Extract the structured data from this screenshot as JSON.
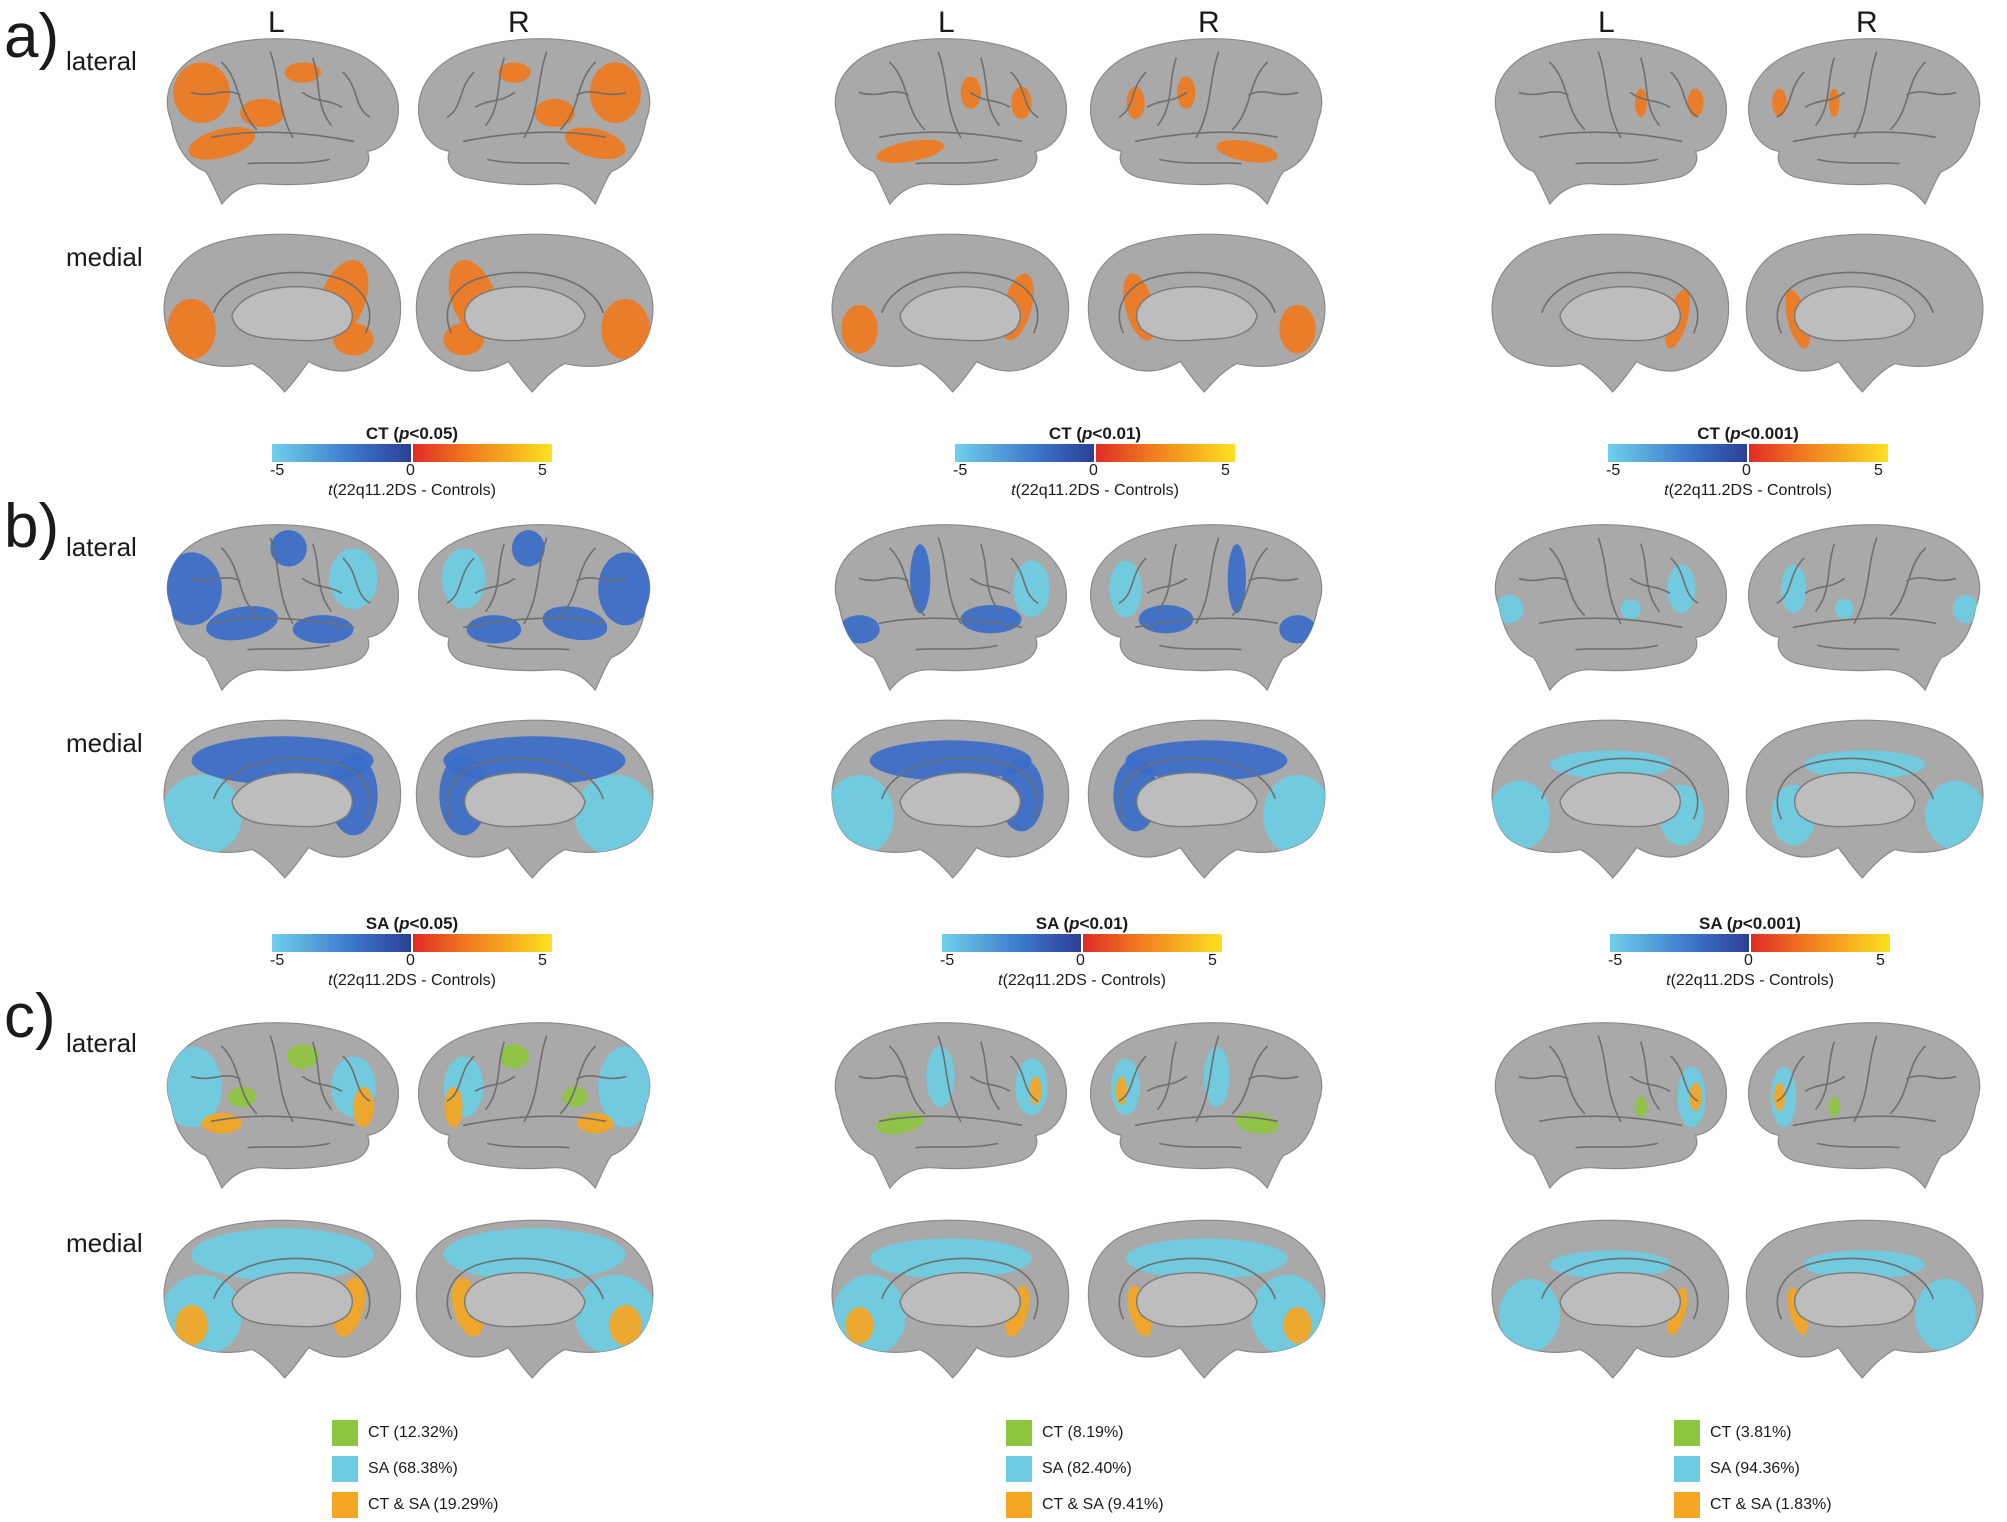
{
  "panels": {
    "a": "a)",
    "b": "b)",
    "c": "c)"
  },
  "row_labels": {
    "lateral": "lateral",
    "medial": "medial"
  },
  "hemispheres": {
    "left": "L",
    "right": "R"
  },
  "colorbars": {
    "ct_p05": {
      "measure": "CT",
      "open": "(",
      "p": "p",
      "thresh": "<0.05)"
    },
    "ct_p01": {
      "measure": "CT",
      "open": "(",
      "p": "p",
      "thresh": "<0.01)"
    },
    "ct_p001": {
      "measure": "CT",
      "open": "(",
      "p": "p",
      "thresh": "<0.001)"
    },
    "sa_p05": {
      "measure": "SA",
      "open": "(",
      "p": "p",
      "thresh": "<0.05)"
    },
    "sa_p01": {
      "measure": "SA",
      "open": "(",
      "p": "p",
      "thresh": "<0.01)"
    },
    "sa_p001": {
      "measure": "SA",
      "open": "(",
      "p": "p",
      "thresh": "<0.001)"
    },
    "ticks": {
      "min": "-5",
      "mid": "0",
      "max": "5"
    },
    "axis": {
      "t": "t",
      "rest": "(22q11.2DS - Controls)"
    }
  },
  "legends": {
    "p05": {
      "ct": "CT (12.32%)",
      "sa": "SA (68.38%)",
      "both": "CT & SA (19.29%)"
    },
    "p01": {
      "ct": "CT (8.19%)",
      "sa": "SA (82.40%)",
      "both": "CT & SA (9.41%)"
    },
    "p001": {
      "ct": "CT (3.81%)",
      "sa": "SA (94.36%)",
      "both": "CT & SA (1.83%)"
    }
  },
  "colors": {
    "brain": "#a9a9a9",
    "ct_overlap": "#8ec63f",
    "sa_overlap": "#6ccde3",
    "both_overlap": "#f5a623",
    "ct_orange": "#ef7a1e",
    "sa_blue": "#3a6cc8"
  }
}
